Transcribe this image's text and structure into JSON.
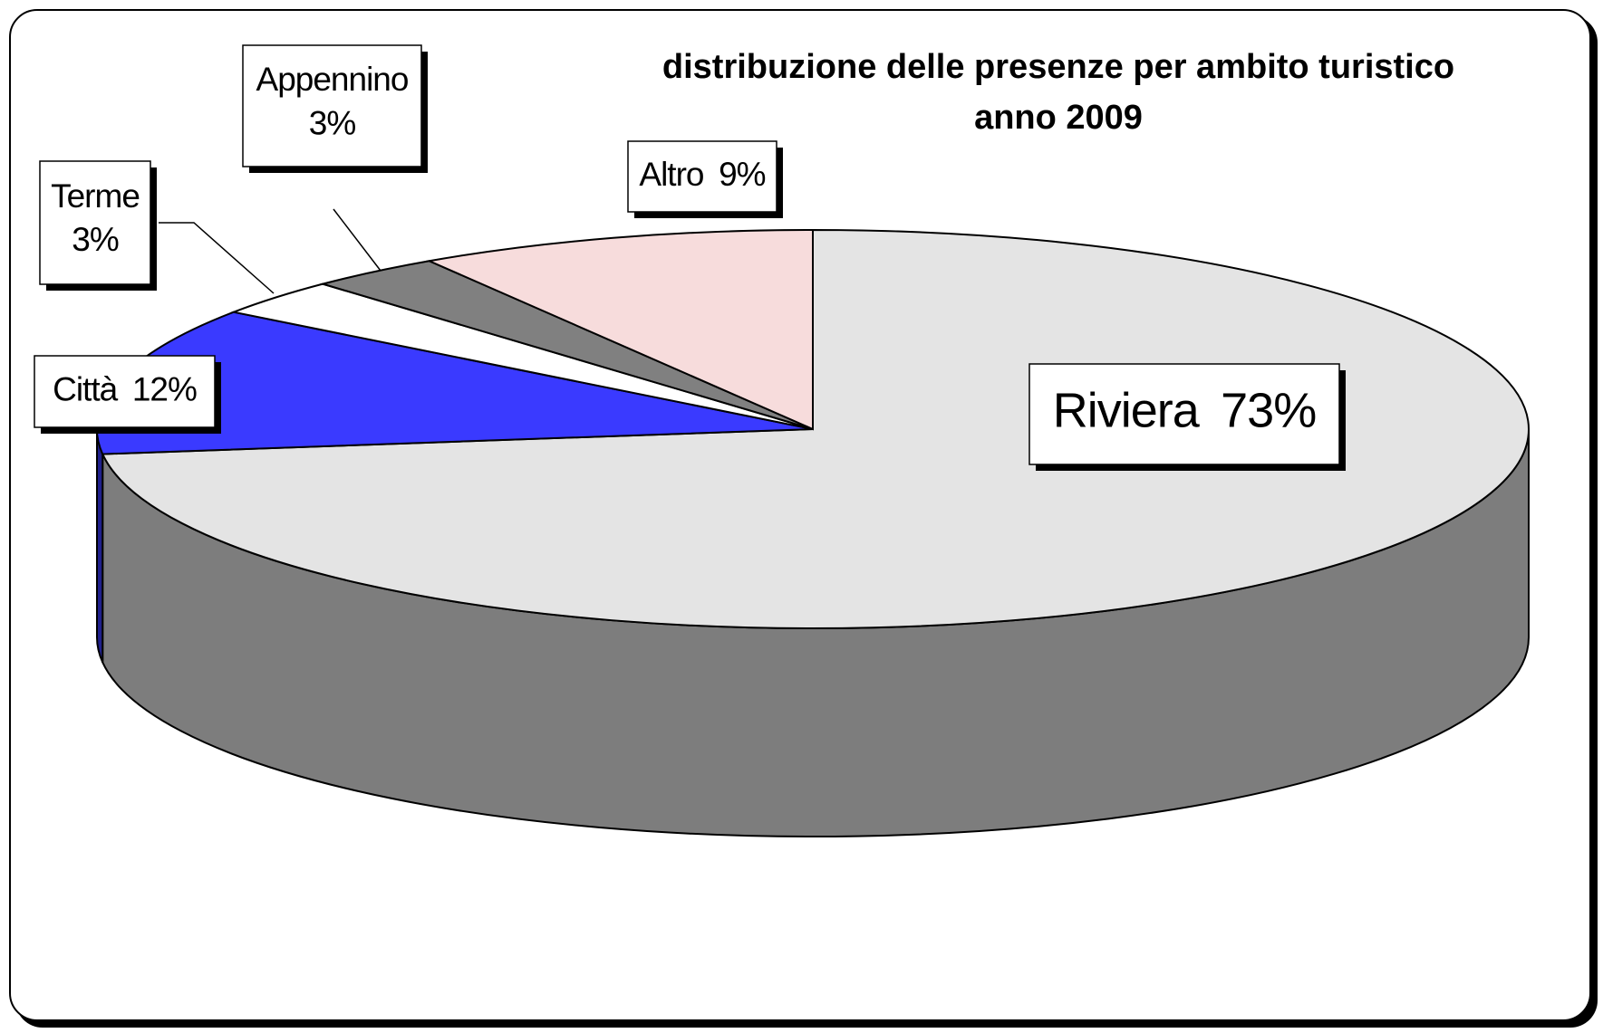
{
  "chart_data": {
    "type": "pie",
    "title": "distribuzione delle presenze per ambito turistico",
    "subtitle": "anno 2009",
    "categories": [
      "Riviera",
      "Città",
      "Terme",
      "Appennino",
      "Altro"
    ],
    "values": [
      73,
      12,
      3,
      3,
      9
    ],
    "value_labels": [
      "73%",
      "12%",
      "3%",
      "3%",
      "9%"
    ],
    "colors": [
      "#e4e4e4",
      "#3a3aff",
      "#ffffff",
      "#808080",
      "#f7dcdc"
    ],
    "three_d": true
  }
}
